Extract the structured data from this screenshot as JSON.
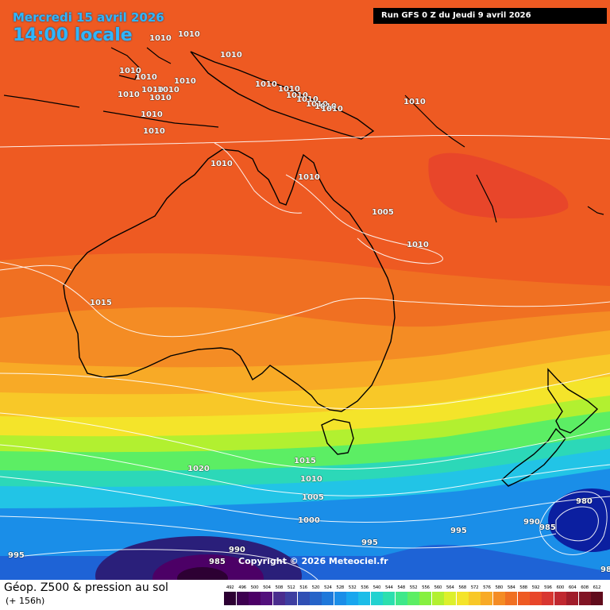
{
  "header": {
    "date": "Mercredi 15 avril 2026",
    "time": "14:00 locale",
    "run": "Run GFS 0 Z du Jeudi 9 avril 2026"
  },
  "copyright": "Copyright © 2026 Meteociel.fr",
  "footer": {
    "title": "Géop. Z500 & pression au sol",
    "subtitle": "(+ 156h)"
  },
  "legend": {
    "values": [
      "492",
      "496",
      "500",
      "504",
      "508",
      "512",
      "516",
      "520",
      "524",
      "528",
      "532",
      "536",
      "540",
      "544",
      "548",
      "552",
      "556",
      "560",
      "564",
      "568",
      "572",
      "576",
      "580",
      "584",
      "588",
      "592",
      "596",
      "600",
      "604",
      "608",
      "612"
    ],
    "colors": [
      "#2d0033",
      "#3d0050",
      "#4c0066",
      "#52107c",
      "#4a2c8e",
      "#3d3ea0",
      "#2f4fb4",
      "#2563c8",
      "#1e78da",
      "#1a8ee8",
      "#18a6ee",
      "#1cbde8",
      "#22d2d0",
      "#2cdfae",
      "#3ee88a",
      "#5cee64",
      "#86f040",
      "#b2f030",
      "#dcf02c",
      "#f4e42a",
      "#f8c828",
      "#f8aa26",
      "#f48c24",
      "#f07022",
      "#ee5a22",
      "#e8462a",
      "#d83630",
      "#c02830",
      "#a01c2a",
      "#801424",
      "#600c1c"
    ]
  },
  "pressure_labels": [
    "1010",
    "1010",
    "1010",
    "1010",
    "1010",
    "1010",
    "1010",
    "1010",
    "1010",
    "1010",
    "1010",
    "1010",
    "1010",
    "1010",
    "1010",
    "1010",
    "1010",
    "1010",
    "1010",
    "1010",
    "1010",
    "1010",
    "1005",
    "1010",
    "1015",
    "1020",
    "1015",
    "1010",
    "1005",
    "1000",
    "995",
    "995",
    "990",
    "985",
    "980",
    "985",
    "995",
    "990",
    "98"
  ]
}
